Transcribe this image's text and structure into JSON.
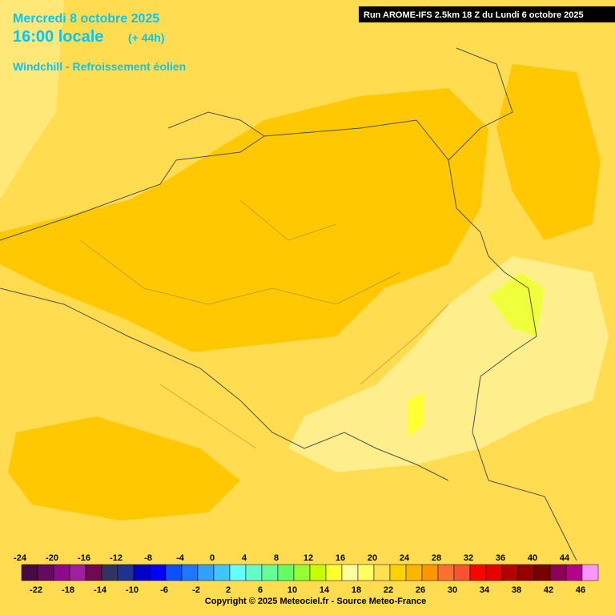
{
  "header": {
    "date": "Mercredi 8 octobre 2025",
    "time": "16:00 locale",
    "lead": "(+ 44h)",
    "parameter": "Windchill - Refroissement éolien",
    "run": "Run AROME-IFS 2.5km 18 Z du Lundi 6 octobre 2025"
  },
  "colorbar": {
    "labels": [
      -24,
      -22,
      -20,
      -18,
      -16,
      -14,
      -12,
      -10,
      -8,
      -6,
      -4,
      -2,
      0,
      2,
      4,
      6,
      8,
      10,
      12,
      14,
      16,
      18,
      20,
      22,
      24,
      26,
      28,
      30,
      32,
      34,
      36,
      38,
      40,
      42,
      44,
      46
    ],
    "colors": [
      "#460a46",
      "#640a64",
      "#8c0a8c",
      "#a01ea0",
      "#6e0a50",
      "#323264",
      "#1e3296",
      "#0000c8",
      "#0000ff",
      "#0a50ff",
      "#1e78ff",
      "#32a0ff",
      "#3cc8ff",
      "#64ffff",
      "#64ffc8",
      "#64ff96",
      "#64ff64",
      "#96ff32",
      "#c8ff00",
      "#ffff32",
      "#ffffa0",
      "#ffff64",
      "#ffe150",
      "#ffd200",
      "#ffb400",
      "#ff9600",
      "#ff6e32",
      "#ff5032",
      "#ff0000",
      "#e60000",
      "#b40000",
      "#960000",
      "#780000",
      "#8c005a",
      "#b4008c",
      "#ff96ff"
    ]
  },
  "footer": {
    "copyright": "Copyright © 2025 Meteociel.fr - Source Meteo-France"
  }
}
